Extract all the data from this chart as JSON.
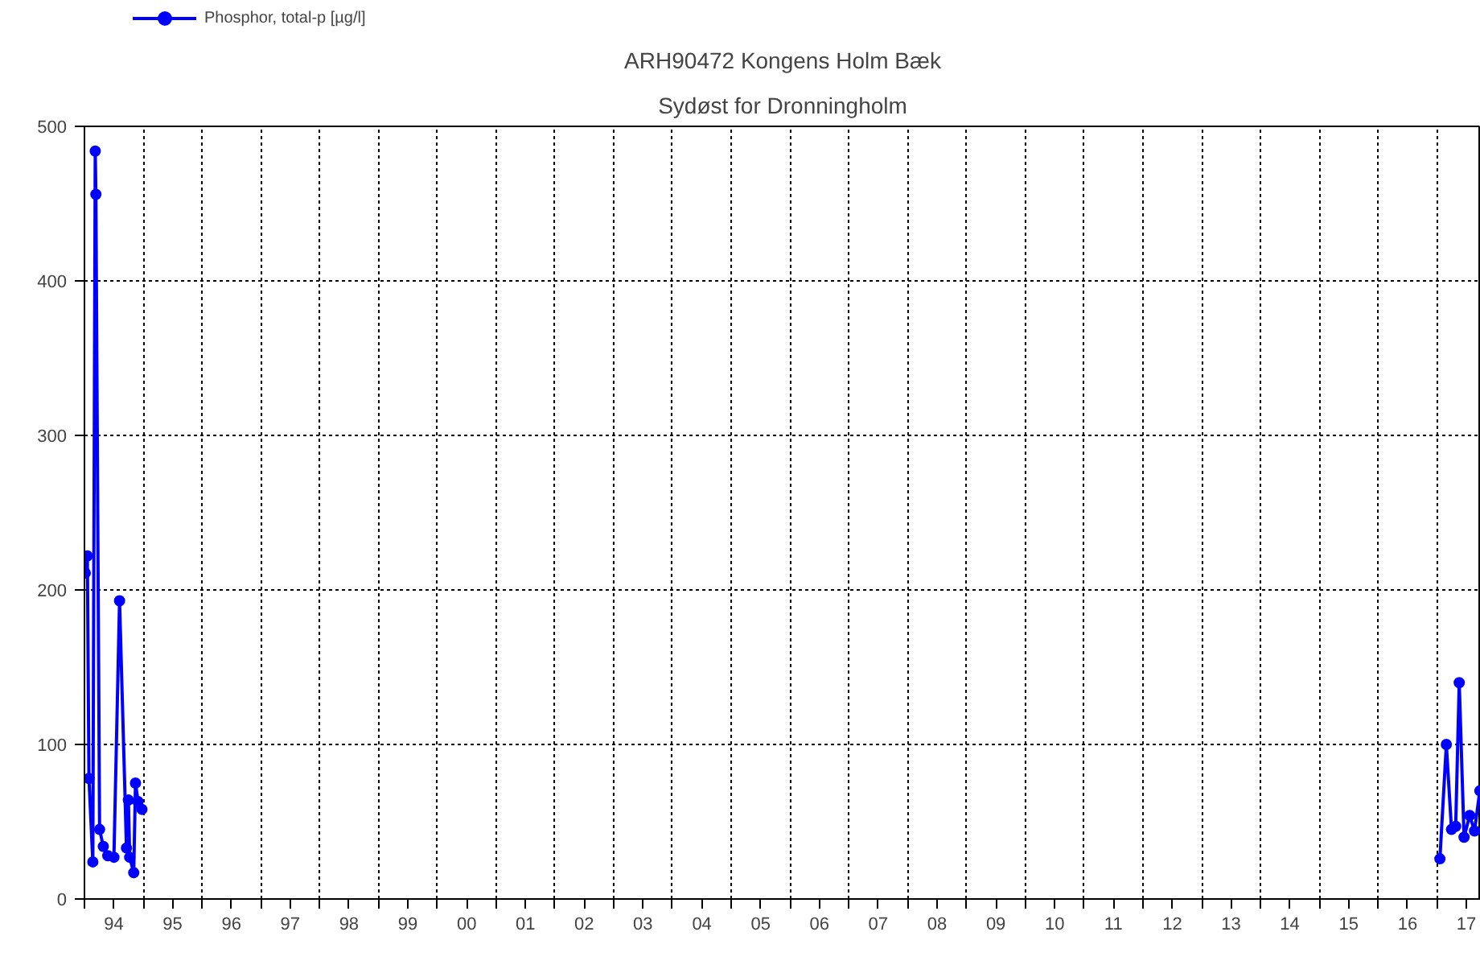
{
  "chart_data": {
    "type": "line",
    "title": "ARH90472 Kongens Holm Bæk",
    "subtitle": "Sydøst for Dronningholm",
    "x": [
      "1994-01-06",
      "1994-01-19",
      "1994-01-29",
      "1994-02-22",
      "1994-03-09",
      "1994-03-13",
      "1994-04-05",
      "1994-04-28",
      "1994-05-26",
      "1994-07-03",
      "1994-08-07",
      "1994-09-19",
      "1994-10-01",
      "1994-10-09",
      "1994-11-03",
      "1994-11-14",
      "1994-11-30",
      "1994-12-24",
      "2005-07-01",
      "2017-01-19",
      "2017-02-28",
      "2017-04-01",
      "2017-04-27",
      "2017-05-19",
      "2017-06-18",
      "2017-07-23",
      "2017-08-22",
      "2017-09-24"
    ],
    "series": [
      {
        "name": "Phosphor, total-p [µg/l]",
        "color": "#0000ff",
        "values": [
          211,
          222,
          78,
          24,
          484,
          456,
          45,
          34,
          28,
          27,
          193,
          33,
          64,
          27,
          17,
          75,
          63,
          58,
          null,
          26,
          100,
          45,
          47,
          140,
          40,
          54,
          44,
          70
        ]
      }
    ],
    "xlim": [
      "1994-01-01",
      "2017-09-30"
    ],
    "xticks": [
      {
        "value": "1994-01-01",
        "label": null
      },
      {
        "value": "1994-07-02",
        "label": "94"
      },
      {
        "value": "1995-01-01",
        "label": null
      },
      {
        "value": "1995-07-02",
        "label": "95"
      },
      {
        "value": "1996-01-01",
        "label": null
      },
      {
        "value": "1996-07-02",
        "label": "96"
      },
      {
        "value": "1997-01-01",
        "label": null
      },
      {
        "value": "1997-07-02",
        "label": "97"
      },
      {
        "value": "1998-01-01",
        "label": null
      },
      {
        "value": "1998-07-02",
        "label": "98"
      },
      {
        "value": "1999-01-01",
        "label": null
      },
      {
        "value": "1999-07-02",
        "label": "99"
      },
      {
        "value": "2000-01-01",
        "label": null
      },
      {
        "value": "2000-07-02",
        "label": "00"
      },
      {
        "value": "2001-01-01",
        "label": null
      },
      {
        "value": "2001-07-02",
        "label": "01"
      },
      {
        "value": "2002-01-01",
        "label": null
      },
      {
        "value": "2002-07-02",
        "label": "02"
      },
      {
        "value": "2003-01-01",
        "label": null
      },
      {
        "value": "2003-07-02",
        "label": "03"
      },
      {
        "value": "2004-01-01",
        "label": null
      },
      {
        "value": "2004-07-02",
        "label": "04"
      },
      {
        "value": "2005-01-01",
        "label": null
      },
      {
        "value": "2005-07-02",
        "label": "05"
      },
      {
        "value": "2006-01-01",
        "label": null
      },
      {
        "value": "2006-07-02",
        "label": "06"
      },
      {
        "value": "2007-01-01",
        "label": null
      },
      {
        "value": "2007-07-02",
        "label": "07"
      },
      {
        "value": "2008-01-01",
        "label": null
      },
      {
        "value": "2008-07-02",
        "label": "08"
      },
      {
        "value": "2009-01-01",
        "label": null
      },
      {
        "value": "2009-07-02",
        "label": "09"
      },
      {
        "value": "2010-01-01",
        "label": null
      },
      {
        "value": "2010-07-02",
        "label": "10"
      },
      {
        "value": "2011-01-01",
        "label": null
      },
      {
        "value": "2011-07-02",
        "label": "11"
      },
      {
        "value": "2012-01-01",
        "label": null
      },
      {
        "value": "2012-07-02",
        "label": "12"
      },
      {
        "value": "2013-01-01",
        "label": null
      },
      {
        "value": "2013-07-02",
        "label": "13"
      },
      {
        "value": "2014-01-01",
        "label": null
      },
      {
        "value": "2014-07-02",
        "label": "14"
      },
      {
        "value": "2015-01-01",
        "label": null
      },
      {
        "value": "2015-07-02",
        "label": "15"
      },
      {
        "value": "2016-01-01",
        "label": null
      },
      {
        "value": "2016-07-02",
        "label": "16"
      },
      {
        "value": "2017-01-01",
        "label": null
      },
      {
        "value": "2017-07-02",
        "label": "17"
      }
    ],
    "ylim": [
      0,
      500
    ],
    "yticks": [
      0,
      100,
      200,
      300,
      400,
      500
    ],
    "grid": true,
    "legend": "top left",
    "marker": "circle",
    "line_style": "solid"
  }
}
